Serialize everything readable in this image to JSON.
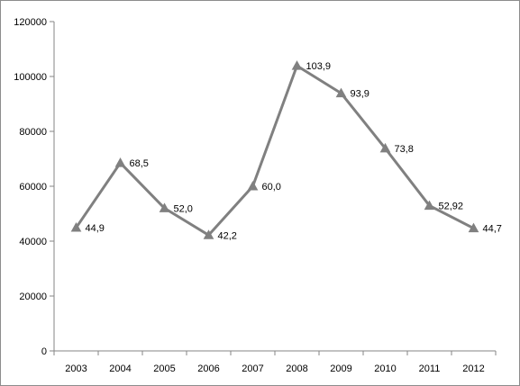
{
  "chart_data": {
    "type": "line",
    "title": "",
    "xlabel": "",
    "ylabel": "",
    "categories": [
      "2003",
      "2004",
      "2005",
      "2006",
      "2007",
      "2008",
      "2009",
      "2010",
      "2011",
      "2012"
    ],
    "series": [
      {
        "values": [
          44900,
          68500,
          52000,
          42200,
          60000,
          103900,
          93900,
          73800,
          52920,
          44700
        ],
        "data_labels": [
          "44,9",
          "68,5",
          "52,0",
          "42,2",
          "60,0",
          "103,9",
          "93,9",
          "73,8",
          "52,92",
          "44,7"
        ],
        "color": "#808080",
        "marker": "triangle"
      }
    ],
    "ylim": [
      0,
      120000
    ],
    "yticks": [
      "0",
      "20000",
      "40000",
      "60000",
      "80000",
      "100000",
      "120000"
    ],
    "grid": false,
    "legend": "none"
  }
}
